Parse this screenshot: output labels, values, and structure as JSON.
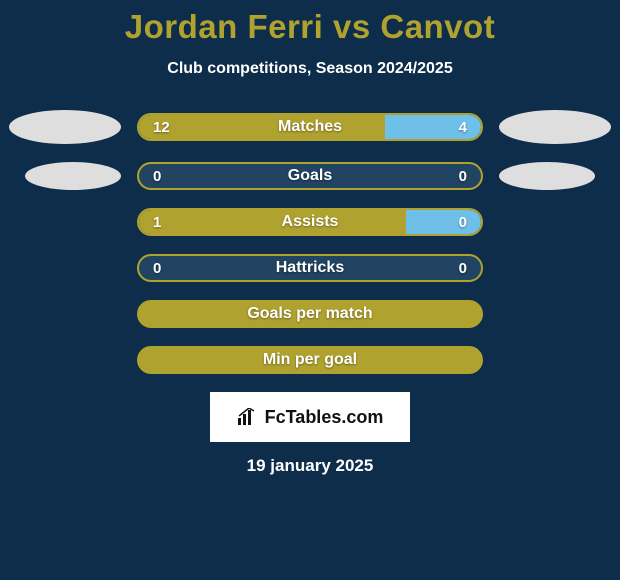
{
  "background_color": "#0e2d4a",
  "title": {
    "text": "Jordan Ferri vs Canvot",
    "color": "#b0a22f",
    "fontsize": 33
  },
  "subtitle": {
    "text": "Club competitions, Season 2024/2025",
    "color": "#ffffff",
    "fontsize": 16
  },
  "player_left_color": "#dedede",
  "player_right_color": "#dedede",
  "bar_left_color": "#b0a22f",
  "bar_right_color": "#6fc0e8",
  "bar_outline_color": "#b0a22f",
  "bar_bg_color": "#204461",
  "text_color": "#ffffff",
  "rows": [
    {
      "label": "Matches",
      "left": "12",
      "right": "4",
      "left_pct": 72,
      "right_pct": 28,
      "show_ellipses": true,
      "ellipse_row": 1
    },
    {
      "label": "Goals",
      "left": "0",
      "right": "0",
      "left_pct": 0,
      "right_pct": 0,
      "show_ellipses": true,
      "ellipse_row": 2
    },
    {
      "label": "Assists",
      "left": "1",
      "right": "0",
      "left_pct": 78,
      "right_pct": 22,
      "show_ellipses": false
    },
    {
      "label": "Hattricks",
      "left": "0",
      "right": "0",
      "left_pct": 0,
      "right_pct": 0,
      "show_ellipses": false
    },
    {
      "label": "Goals per match",
      "left": "",
      "right": "",
      "left_pct": 100,
      "right_pct": 0,
      "show_ellipses": false,
      "full": true
    },
    {
      "label": "Min per goal",
      "left": "",
      "right": "",
      "left_pct": 100,
      "right_pct": 0,
      "show_ellipses": false,
      "full": true
    }
  ],
  "footer": {
    "brand": "FcTables.com",
    "brand_bg": "#ffffff",
    "brand_text_color": "#111111",
    "date": "19 january 2025"
  }
}
